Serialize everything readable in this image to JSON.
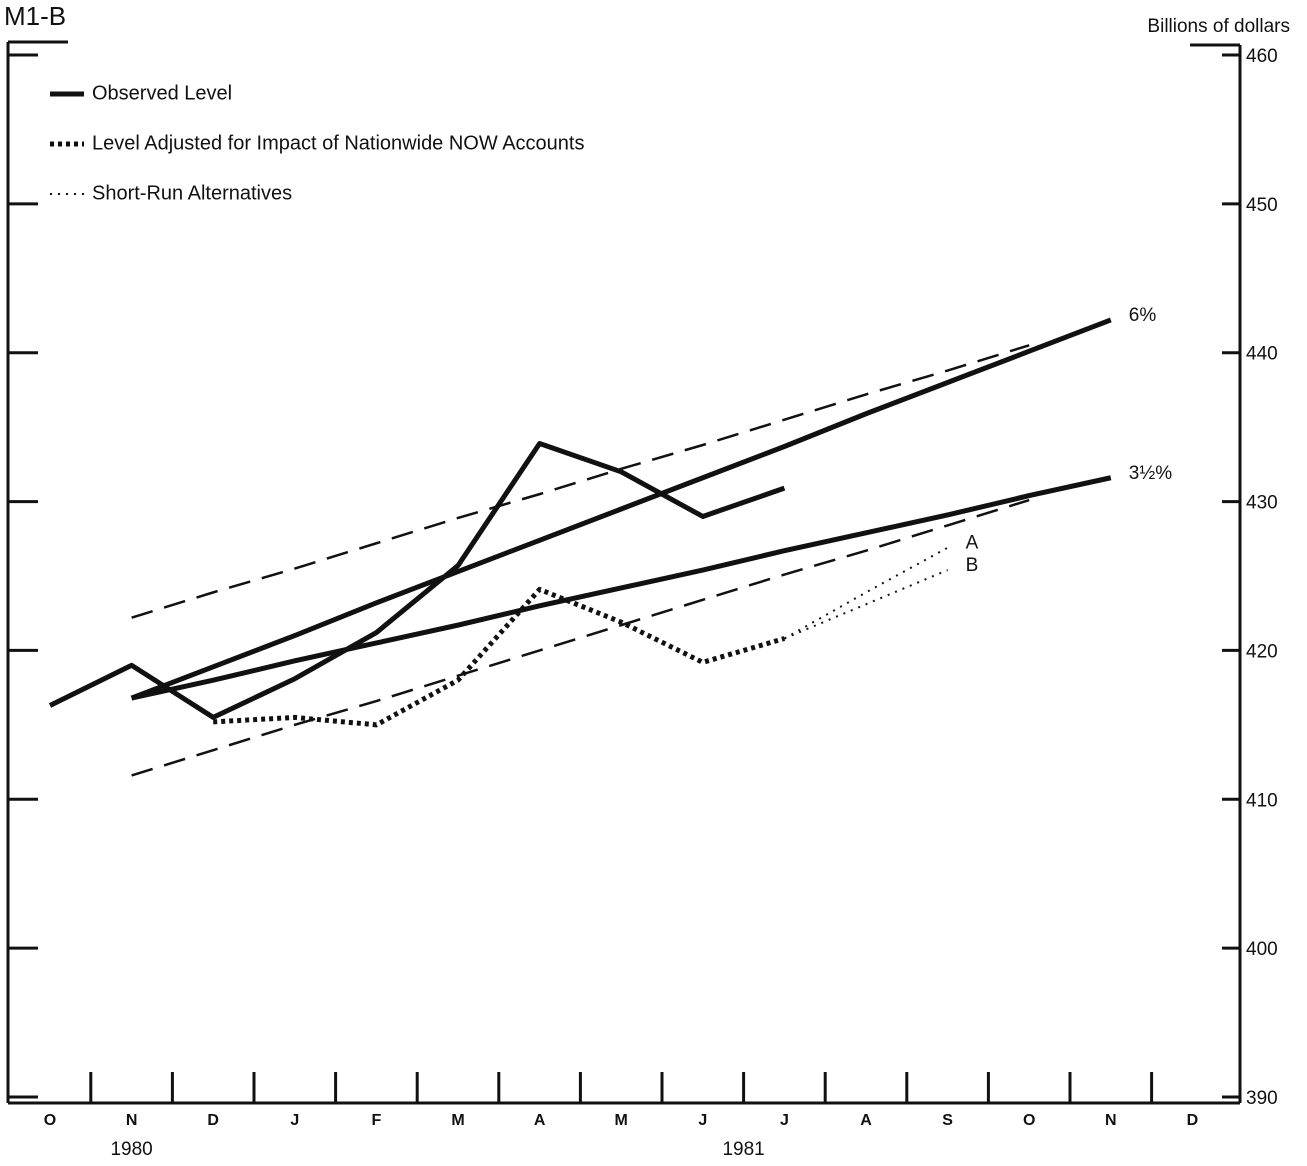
{
  "chart_data": {
    "type": "line",
    "title": "M1-B",
    "y_axis_label": "Billions of dollars",
    "categories": [
      "O",
      "N",
      "D",
      "J",
      "F",
      "M",
      "A",
      "M",
      "J",
      "J",
      "A",
      "S",
      "O",
      "N",
      "D"
    ],
    "years": [
      {
        "label": "1980",
        "category": 1
      },
      {
        "label": "1981",
        "category": 8.5
      }
    ],
    "ylim": [
      390,
      460
    ],
    "yticks": [
      390,
      400,
      410,
      420,
      430,
      440,
      450,
      460
    ],
    "grid": false,
    "legend": "upper left",
    "series": [
      {
        "name": "Observed Level",
        "color": "#111111",
        "style": "solid",
        "width": 5,
        "values": [
          416.3,
          419.0,
          415.5,
          418.1,
          421.2,
          425.7,
          433.9,
          432.0,
          429.0,
          430.9,
          null,
          null,
          null,
          null,
          null
        ]
      },
      {
        "name": "Level Adjusted for Impact of Nationwide NOW Accounts",
        "color": "#111111",
        "style": "dotted-heavy",
        "width": 5,
        "values": [
          null,
          null,
          415.2,
          415.5,
          415.0,
          418.0,
          424.1,
          421.9,
          419.2,
          420.8,
          null,
          null,
          null,
          null,
          null
        ]
      },
      {
        "name": "Short-Run Alternatives",
        "end_label": "A",
        "color": "#111111",
        "style": "dotted",
        "width": 2,
        "values": [
          null,
          null,
          null,
          null,
          null,
          null,
          null,
          null,
          null,
          420.8,
          423.9,
          426.9,
          null,
          null,
          null
        ]
      },
      {
        "end_label": "B",
        "color": "#111111",
        "style": "dotted",
        "width": 2,
        "values": [
          null,
          null,
          null,
          null,
          null,
          null,
          null,
          null,
          null,
          420.8,
          423.1,
          425.4,
          null,
          null,
          null
        ]
      },
      {
        "end_label": "6%",
        "color": "#111111",
        "style": "solid",
        "width": 5,
        "values": [
          null,
          416.8,
          418.9,
          421.0,
          423.2,
          425.3,
          427.4,
          429.5,
          431.6,
          433.7,
          435.9,
          438.0,
          440.1,
          442.2,
          null
        ]
      },
      {
        "end_label": "3½%",
        "color": "#111111",
        "style": "solid",
        "width": 5,
        "values": [
          null,
          416.8,
          418.0,
          419.3,
          420.5,
          421.7,
          423.0,
          424.2,
          425.4,
          426.7,
          427.9,
          429.1,
          430.4,
          431.6,
          null
        ]
      },
      {
        "color": "#111111",
        "style": "dashed",
        "width": 2.5,
        "values": [
          null,
          422.2,
          423.9,
          425.5,
          427.2,
          428.9,
          430.5,
          432.2,
          433.8,
          435.5,
          437.2,
          438.8,
          440.5,
          null,
          null
        ]
      },
      {
        "color": "#111111",
        "style": "dashed",
        "width": 2.5,
        "values": [
          null,
          411.6,
          413.3,
          415.0,
          416.6,
          418.3,
          420.0,
          421.7,
          423.4,
          425.1,
          426.7,
          428.4,
          430.1,
          null,
          null
        ]
      }
    ]
  }
}
